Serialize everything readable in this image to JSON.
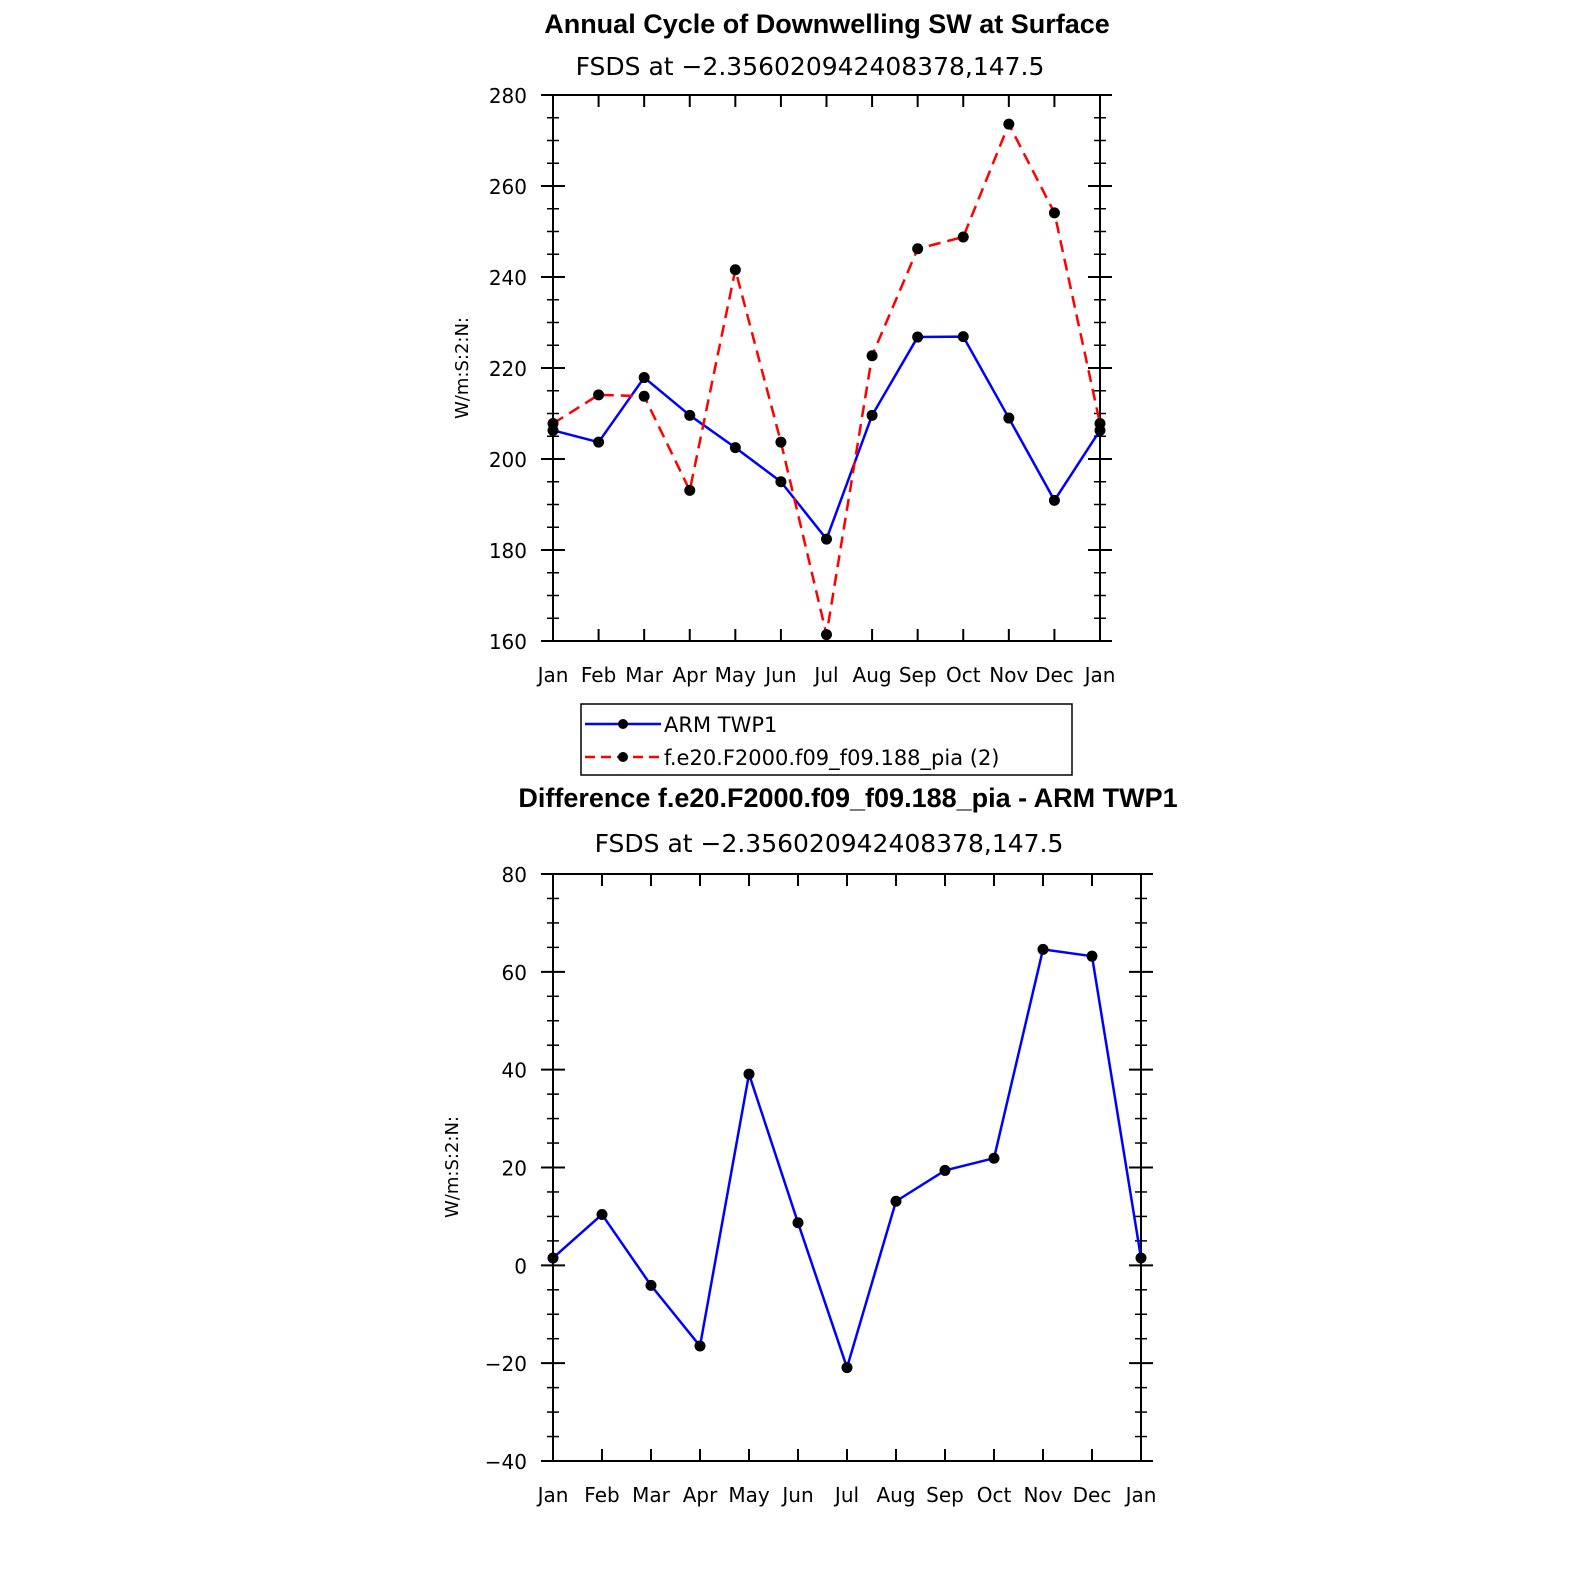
{
  "chart_data": [
    {
      "type": "line",
      "title": "Annual Cycle of Downwelling SW at Surface",
      "subtitle": "FSDS at −2.356020942408378,147.5",
      "ylabel": "W/m:S:2:N:",
      "categories": [
        "Jan",
        "Feb",
        "Mar",
        "Apr",
        "May",
        "Jun",
        "Jul",
        "Aug",
        "Sep",
        "Oct",
        "Nov",
        "Dec",
        "Jan"
      ],
      "ylim": [
        160,
        280
      ],
      "yticks": [
        160,
        180,
        200,
        220,
        240,
        260,
        280
      ],
      "grid": false,
      "legend": "below",
      "series": [
        {
          "name": "ARM TWP1",
          "color": "#0000ff",
          "dash": "solid",
          "values": [
            206.3,
            203.7,
            217.9,
            209.6,
            202.5,
            195.0,
            182.4,
            209.6,
            226.8,
            226.9,
            209.0,
            190.9,
            206.3
          ]
        },
        {
          "name": "f.e20.F2000.f09_f09.188_pia (2)",
          "color": "#ff0000",
          "dash": "dashed",
          "values": [
            207.8,
            214.1,
            213.8,
            193.1,
            241.6,
            203.7,
            161.4,
            222.7,
            246.2,
            248.8,
            273.6,
            254.1,
            207.8
          ]
        }
      ]
    },
    {
      "type": "line",
      "title": "Difference f.e20.F2000.f09_f09.188_pia - ARM TWP1",
      "subtitle": "FSDS at −2.356020942408378,147.5",
      "ylabel": "W/m:S:2:N:",
      "categories": [
        "Jan",
        "Feb",
        "Mar",
        "Apr",
        "May",
        "Jun",
        "Jul",
        "Aug",
        "Sep",
        "Oct",
        "Nov",
        "Dec",
        "Jan"
      ],
      "ylim": [
        -40,
        80
      ],
      "yticks": [
        -40,
        -20,
        0,
        20,
        40,
        60,
        80
      ],
      "grid": false,
      "series": [
        {
          "color": "#0000ff",
          "dash": "solid",
          "values": [
            1.5,
            10.4,
            -4.1,
            -16.5,
            39.1,
            8.7,
            -20.9,
            13.1,
            19.4,
            21.9,
            64.6,
            63.2,
            1.5
          ]
        }
      ]
    }
  ]
}
